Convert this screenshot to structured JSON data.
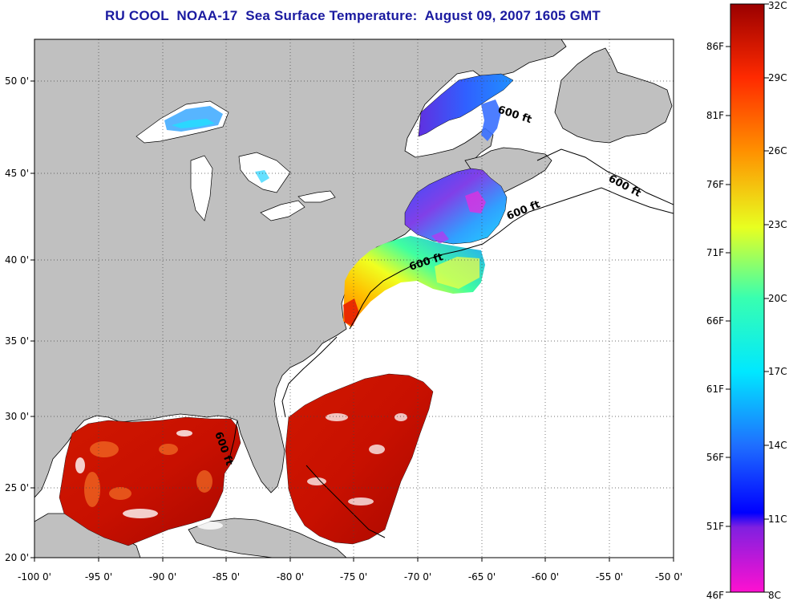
{
  "title": "RU COOL  NOAA-17  Sea Surface Temperature:  August 09, 2007 1605 GMT",
  "map": {
    "lon_ticks": [
      "-100 0'",
      "-95 0'",
      "-90 0'",
      "-85 0'",
      "-80 0'",
      "-75 0'",
      "-70 0'",
      "-65 0'",
      "-60 0'",
      "-55 0'",
      "-50 0'"
    ],
    "lat_ticks": [
      "50 0'",
      "45 0'",
      "40 0'",
      "35 0'",
      "30 0'",
      "25 0'",
      "20 0'"
    ],
    "isobath_labels": [
      "600 ft",
      "600 ft",
      "600 ft",
      "600 ft",
      "600 ft"
    ],
    "colors": {
      "land": "#c0c0c0",
      "ocean_nodata": "#ffffff",
      "coast": "#000000"
    }
  },
  "colorbar": {
    "fahrenheit": [
      "86F",
      "81F",
      "76F",
      "71F",
      "66F",
      "61F",
      "56F",
      "51F",
      "46F"
    ],
    "celsius": [
      "32C",
      "29C",
      "26C",
      "23C",
      "20C",
      "17C",
      "14C",
      "11C",
      "8C"
    ],
    "range_c": [
      8,
      32
    ]
  }
}
